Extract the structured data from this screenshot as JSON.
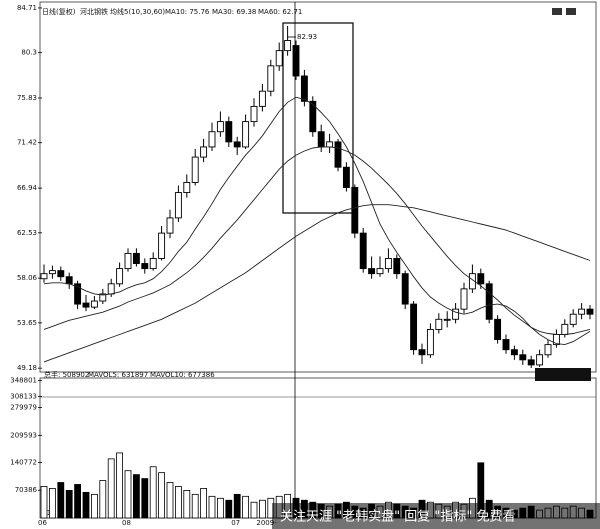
{
  "chart_data": {
    "type": "candlestick",
    "period_label": "日线(复权)",
    "stock_name": "河北钢铁",
    "ma_header": "均线5(10,30,60)",
    "peak_annotation": "82.93",
    "categories": [
      "06",
      null,
      null,
      null,
      null,
      null,
      null,
      null,
      null,
      null,
      "08",
      null,
      null,
      null,
      null,
      null,
      null,
      null,
      null,
      null,
      null,
      null,
      null,
      "07",
      null,
      null,
      "2009-",
      null,
      null,
      null,
      null,
      null,
      null,
      null,
      null,
      null,
      null,
      null,
      null,
      null,
      null,
      null,
      null,
      null,
      null,
      null,
      null,
      null,
      null,
      null,
      null,
      null,
      null,
      null,
      null,
      null,
      null,
      null,
      null,
      null,
      null,
      null,
      null,
      null,
      null,
      null
    ],
    "ohlc": [
      [
        58.0,
        59.4,
        57.6,
        58.5
      ],
      [
        58.5,
        59.3,
        58.0,
        58.8
      ],
      [
        58.8,
        59.2,
        57.8,
        58.2
      ],
      [
        58.2,
        58.6,
        57.0,
        57.5
      ],
      [
        57.5,
        57.8,
        55.0,
        55.5
      ],
      [
        55.6,
        56.4,
        54.8,
        55.2
      ],
      [
        55.2,
        56.3,
        55.0,
        55.8
      ],
      [
        55.8,
        57.0,
        55.5,
        56.5
      ],
      [
        56.5,
        58.0,
        56.2,
        57.5
      ],
      [
        57.5,
        59.6,
        57.2,
        59.0
      ],
      [
        59.0,
        61.0,
        58.7,
        60.5
      ],
      [
        60.5,
        61.0,
        59.2,
        59.5
      ],
      [
        59.5,
        60.0,
        58.5,
        59.0
      ],
      [
        59.0,
        60.6,
        58.8,
        60.0
      ],
      [
        60.0,
        63.2,
        59.8,
        62.5
      ],
      [
        62.5,
        64.8,
        62.0,
        64.0
      ],
      [
        64.0,
        67.2,
        63.6,
        66.5
      ],
      [
        66.5,
        68.3,
        66.0,
        67.5
      ],
      [
        67.5,
        70.8,
        67.2,
        70.0
      ],
      [
        70.0,
        71.8,
        69.5,
        71.0
      ],
      [
        71.0,
        73.4,
        70.6,
        72.5
      ],
      [
        72.5,
        74.5,
        72.0,
        73.5
      ],
      [
        73.5,
        74.0,
        71.0,
        71.5
      ],
      [
        71.5,
        72.0,
        70.2,
        71.0
      ],
      [
        71.0,
        74.2,
        70.8,
        73.5
      ],
      [
        73.5,
        75.8,
        73.0,
        75.0
      ],
      [
        75.0,
        77.2,
        74.5,
        76.5
      ],
      [
        76.5,
        79.6,
        76.0,
        79.0
      ],
      [
        79.0,
        81.3,
        78.5,
        80.5
      ],
      [
        80.5,
        82.93,
        80.0,
        81.5
      ],
      [
        81.0,
        81.5,
        77.6,
        78.0
      ],
      [
        78.0,
        78.6,
        75.0,
        75.5
      ],
      [
        75.5,
        76.0,
        72.0,
        72.5
      ],
      [
        72.5,
        73.2,
        70.5,
        71.0
      ],
      [
        71.0,
        72.3,
        70.4,
        71.5
      ],
      [
        71.5,
        71.8,
        68.6,
        69.0
      ],
      [
        69.0,
        69.5,
        66.6,
        67.0
      ],
      [
        67.0,
        67.3,
        62.0,
        62.5
      ],
      [
        62.5,
        63.0,
        58.6,
        59.0
      ],
      [
        59.0,
        60.2,
        58.0,
        58.5
      ],
      [
        58.5,
        60.2,
        58.2,
        59.0
      ],
      [
        59.0,
        61.0,
        58.6,
        60.0
      ],
      [
        60.0,
        60.4,
        58.0,
        58.5
      ],
      [
        58.5,
        58.8,
        55.0,
        55.5
      ],
      [
        55.5,
        55.8,
        50.5,
        51.0
      ],
      [
        51.0,
        51.6,
        49.6,
        50.5
      ],
      [
        50.5,
        53.6,
        50.2,
        53.0
      ],
      [
        53.0,
        54.6,
        52.6,
        54.0
      ],
      [
        54.0,
        54.8,
        53.2,
        54.0
      ],
      [
        54.0,
        55.6,
        53.6,
        55.0
      ],
      [
        55.0,
        57.6,
        54.6,
        57.0
      ],
      [
        57.0,
        59.4,
        56.6,
        58.5
      ],
      [
        58.5,
        59.0,
        57.0,
        57.5
      ],
      [
        57.5,
        57.8,
        53.6,
        54.0
      ],
      [
        54.0,
        54.4,
        51.6,
        52.0
      ],
      [
        52.0,
        52.5,
        50.6,
        51.0
      ],
      [
        51.0,
        51.4,
        50.0,
        50.5
      ],
      [
        50.5,
        51.0,
        49.5,
        50.0
      ],
      [
        50.0,
        50.4,
        49.2,
        49.5
      ],
      [
        49.5,
        51.0,
        49.3,
        50.5
      ],
      [
        50.5,
        52.0,
        50.2,
        51.5
      ],
      [
        51.5,
        53.0,
        51.2,
        52.5
      ],
      [
        52.5,
        54.0,
        52.2,
        53.5
      ],
      [
        53.5,
        55.0,
        53.2,
        54.5
      ],
      [
        54.5,
        55.6,
        54.0,
        55.0
      ],
      [
        55.0,
        55.4,
        54.0,
        54.5
      ]
    ],
    "series": [
      {
        "name": "MA10: 75.76",
        "color": "#222",
        "values": [
          57.5,
          57.6,
          57.6,
          57.5,
          57.2,
          56.8,
          56.5,
          56.4,
          56.5,
          56.7,
          57.1,
          57.4,
          57.6,
          58.0,
          58.7,
          59.6,
          60.7,
          61.6,
          62.9,
          64.1,
          65.4,
          66.8,
          68.0,
          69.1,
          70.2,
          71.1,
          72.1,
          73.3,
          74.5,
          75.4,
          75.9,
          75.7,
          75.2,
          74.4,
          73.5,
          72.3,
          71.0,
          69.4,
          67.6,
          65.5,
          63.4,
          61.9,
          60.6,
          59.4,
          58.2,
          57.1,
          56.2,
          55.6,
          55.1,
          54.7,
          54.5,
          54.7,
          55.1,
          55.4,
          55.5,
          55.3,
          54.8,
          54.1,
          53.2,
          52.5,
          52.0,
          51.6,
          51.5,
          51.8,
          52.3,
          52.8
        ]
      },
      {
        "name": "MA30: 69.38",
        "color": "#222",
        "values": [
          53.0,
          53.3,
          53.6,
          53.9,
          54.1,
          54.3,
          54.5,
          54.7,
          55.0,
          55.3,
          55.7,
          56.0,
          56.3,
          56.6,
          57.0,
          57.4,
          58.0,
          58.6,
          59.3,
          60.1,
          61.0,
          62.0,
          62.9,
          63.8,
          64.8,
          65.8,
          66.8,
          67.8,
          68.8,
          69.6,
          70.2,
          70.6,
          70.9,
          71.0,
          71.0,
          70.9,
          70.6,
          70.2,
          69.6,
          68.9,
          68.1,
          67.3,
          66.4,
          65.4,
          64.3,
          63.2,
          62.2,
          61.2,
          60.2,
          59.3,
          58.5,
          57.9,
          57.3,
          56.6,
          55.9,
          55.1,
          54.4,
          53.8,
          53.2,
          52.8,
          52.6,
          52.5,
          52.5,
          52.6,
          52.8,
          53.0
        ]
      },
      {
        "name": "MA60: 62.71",
        "color": "#222",
        "values": [
          49.8,
          50.1,
          50.4,
          50.7,
          51.0,
          51.3,
          51.6,
          51.9,
          52.2,
          52.5,
          52.8,
          53.1,
          53.4,
          53.7,
          54.0,
          54.4,
          54.8,
          55.2,
          55.6,
          56.1,
          56.6,
          57.1,
          57.6,
          58.1,
          58.6,
          59.2,
          59.8,
          60.4,
          61.0,
          61.6,
          62.2,
          62.7,
          63.2,
          63.7,
          64.1,
          64.5,
          64.8,
          65.0,
          65.2,
          65.3,
          65.3,
          65.3,
          65.2,
          65.1,
          65.0,
          64.8,
          64.6,
          64.4,
          64.2,
          64.0,
          63.8,
          63.6,
          63.4,
          63.2,
          63.0,
          62.8,
          62.5,
          62.2,
          61.9,
          61.6,
          61.3,
          61.0,
          60.7,
          60.4,
          60.1,
          59.8
        ]
      }
    ],
    "ylim": [
      48.8,
      85.1
    ],
    "yticks": [
      84.71,
      80.3,
      75.83,
      71.42,
      66.94,
      62.53,
      58.06,
      53.65,
      49.18
    ],
    "volume": {
      "header": [
        "总手: 508902",
        "MAVOL5: 631897",
        "MAVOL10: 677386"
      ],
      "unit_label": "X10",
      "values": [
        80000,
        75000,
        90000,
        70000,
        85000,
        65000,
        60000,
        95000,
        150000,
        165000,
        120000,
        110000,
        100000,
        130000,
        115000,
        90000,
        80000,
        70000,
        60000,
        75000,
        55000,
        50000,
        45000,
        60000,
        55000,
        40000,
        45000,
        50000,
        55000,
        60000,
        50000,
        45000,
        40000,
        35000,
        30000,
        35000,
        40000,
        30000,
        25000,
        35000,
        30000,
        40000,
        35000,
        30000,
        25000,
        45000,
        40000,
        35000,
        30000,
        40000,
        35000,
        50000,
        140000,
        45000,
        30000,
        25000,
        20000,
        25000,
        30000,
        20000,
        25000,
        30000,
        25000,
        30000,
        25000,
        20000
      ],
      "ylim": [
        0,
        350000
      ],
      "yticks": [
        348801,
        308133,
        279979,
        209593,
        140772,
        70386
      ]
    },
    "watermark": "关注天涯 \"老韩实盘\" 回复 \"指标\" 免费看"
  }
}
